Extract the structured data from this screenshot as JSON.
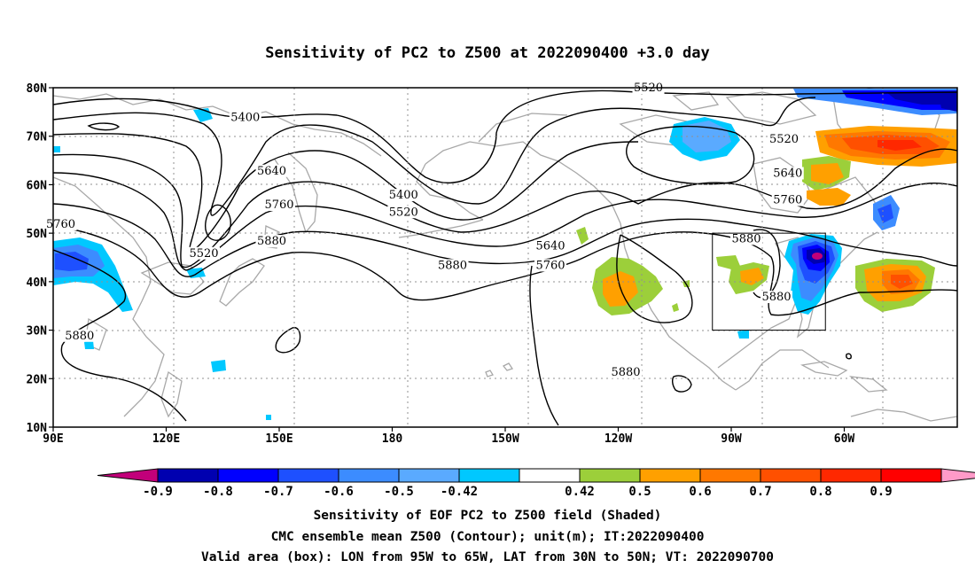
{
  "title": "Sensitivity of PC2 to Z500 at 2022090400 +3.0 day",
  "lat_labels": [
    "80N",
    "70N",
    "60N",
    "50N",
    "40N",
    "30N",
    "20N",
    "10N"
  ],
  "lon_labels": [
    "90E",
    "120E",
    "150E",
    "180",
    "150W",
    "120W",
    "90W",
    "60W"
  ],
  "contour_labels": [
    {
      "text": "5520",
      "lon": 248,
      "lat": 79.6
    },
    {
      "text": "5400",
      "lon": 141,
      "lat": 73.5
    },
    {
      "text": "5520",
      "lon": 284,
      "lat": 69.0
    },
    {
      "text": "5640",
      "lon": 148,
      "lat": 62.5
    },
    {
      "text": "5640",
      "lon": 285,
      "lat": 62.0
    },
    {
      "text": "5400",
      "lon": 183,
      "lat": 57.5
    },
    {
      "text": "5760",
      "lon": 285,
      "lat": 56.5
    },
    {
      "text": "5760",
      "lon": 150,
      "lat": 55.5
    },
    {
      "text": "5520",
      "lon": 183,
      "lat": 54.0
    },
    {
      "text": "5760",
      "lon": 92,
      "lat": 51.5
    },
    {
      "text": "5880",
      "lon": 148,
      "lat": 48.0
    },
    {
      "text": "5880",
      "lon": 274,
      "lat": 48.5
    },
    {
      "text": "5640",
      "lon": 222,
      "lat": 47.0
    },
    {
      "text": "5520",
      "lon": 130,
      "lat": 45.5
    },
    {
      "text": "5760",
      "lon": 222,
      "lat": 43.0
    },
    {
      "text": "5880",
      "lon": 196,
      "lat": 43.0
    },
    {
      "text": "5880",
      "lon": 282,
      "lat": 36.5
    },
    {
      "text": "5880",
      "lon": 97,
      "lat": 28.5
    },
    {
      "text": "5880",
      "lon": 242,
      "lat": 21.0
    }
  ],
  "valid_box": {
    "lon_min": 265,
    "lon_max": 295,
    "lat_min": 30,
    "lat_max": 50
  },
  "colorbar": {
    "labels": [
      "-0.9",
      "-0.8",
      "-0.7",
      "-0.6",
      "-0.5",
      "-0.42",
      "0.42",
      "0.5",
      "0.6",
      "0.7",
      "0.8",
      "0.9"
    ],
    "colors": [
      "#c2007a",
      "#0000b0",
      "#0000ff",
      "#1e50ff",
      "#3c8cff",
      "#5aaaff",
      "#00c8ff",
      "#ffffff",
      "#9ccf3a",
      "#ffa000",
      "#ff7800",
      "#ff5000",
      "#ff2800",
      "#ff0000",
      "#ff9ac8"
    ]
  },
  "captions": [
    "Sensitivity of EOF PC2 to Z500 field (Shaded)",
    "CMC ensemble mean Z500 (Contour); unit(m); IT:2022090400",
    "Valid area (box): LON from 95W to 65W, LAT from 30N to 50N; VT: 2022090700"
  ]
}
